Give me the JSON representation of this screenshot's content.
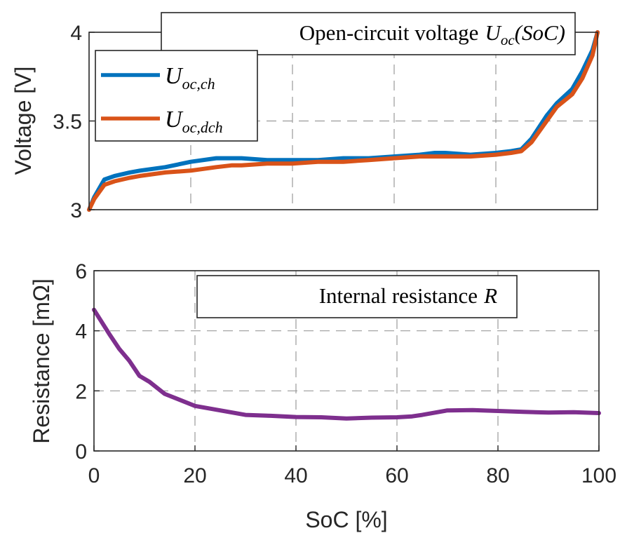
{
  "chart_data": [
    {
      "type": "line",
      "title": "Open-circuit voltage",
      "title_math": "U",
      "title_math_sub": "oc",
      "title_math_arg": "(SoC)",
      "xlabel": "",
      "ylabel": "Voltage [V]",
      "xlim": [
        0,
        100
      ],
      "ylim": [
        3,
        4
      ],
      "yticks": [
        "3",
        "3.5",
        "4"
      ],
      "grid": true,
      "legend_position": "top-left",
      "series": [
        {
          "name": "U_oc,ch",
          "legend_main": "U",
          "legend_sub": "oc,ch",
          "color": "#0072BD",
          "x": [
            0,
            1,
            3,
            5,
            8,
            10,
            15,
            20,
            25,
            28,
            30,
            35,
            40,
            45,
            50,
            55,
            60,
            65,
            68,
            70,
            75,
            80,
            83,
            85,
            87,
            90,
            92,
            95,
            97,
            99,
            100
          ],
          "y": [
            3.0,
            3.07,
            3.17,
            3.19,
            3.21,
            3.22,
            3.24,
            3.27,
            3.29,
            3.29,
            3.29,
            3.28,
            3.28,
            3.28,
            3.29,
            3.29,
            3.3,
            3.31,
            3.32,
            3.32,
            3.31,
            3.32,
            3.33,
            3.34,
            3.4,
            3.53,
            3.6,
            3.68,
            3.78,
            3.9,
            4.0
          ]
        },
        {
          "name": "U_oc,dch",
          "legend_main": "U",
          "legend_sub": "oc,dch",
          "color": "#D95319",
          "x": [
            0,
            1,
            3,
            5,
            8,
            10,
            15,
            20,
            25,
            28,
            30,
            35,
            40,
            45,
            50,
            55,
            60,
            65,
            68,
            70,
            75,
            80,
            83,
            85,
            87,
            90,
            92,
            95,
            97,
            99,
            100
          ],
          "y": [
            3.0,
            3.06,
            3.14,
            3.16,
            3.18,
            3.19,
            3.21,
            3.22,
            3.24,
            3.25,
            3.25,
            3.26,
            3.26,
            3.27,
            3.27,
            3.28,
            3.29,
            3.3,
            3.3,
            3.3,
            3.3,
            3.31,
            3.32,
            3.33,
            3.38,
            3.5,
            3.58,
            3.65,
            3.74,
            3.87,
            4.0
          ]
        }
      ]
    },
    {
      "type": "line",
      "title": "Internal resistance",
      "title_math": "R",
      "xlabel": "SoC [%]",
      "ylabel": "Resistance [mΩ]",
      "xlim": [
        0,
        100
      ],
      "ylim": [
        0,
        6
      ],
      "xticks": [
        "0",
        "20",
        "40",
        "60",
        "80",
        "100"
      ],
      "yticks": [
        "0",
        "2",
        "4",
        "6"
      ],
      "grid": true,
      "series": [
        {
          "color": "#7E2F8E",
          "x": [
            0,
            3,
            5,
            7,
            9,
            11,
            14,
            17,
            20,
            25,
            30,
            35,
            40,
            45,
            50,
            55,
            60,
            63,
            65,
            70,
            75,
            80,
            85,
            90,
            95,
            100
          ],
          "y": [
            4.7,
            3.9,
            3.4,
            3.0,
            2.5,
            2.3,
            1.9,
            1.7,
            1.5,
            1.35,
            1.2,
            1.17,
            1.13,
            1.12,
            1.08,
            1.11,
            1.12,
            1.15,
            1.2,
            1.35,
            1.36,
            1.33,
            1.3,
            1.28,
            1.29,
            1.26
          ]
        }
      ]
    }
  ]
}
